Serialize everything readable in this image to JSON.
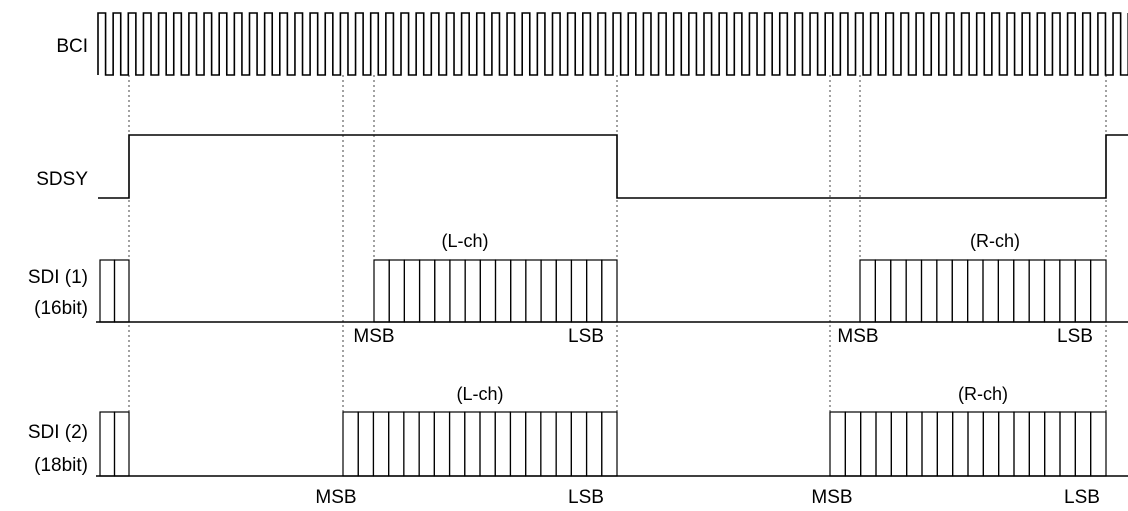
{
  "signals": {
    "bci": "BCI",
    "sdsy": "SDSY",
    "sdi1": "SDI (1)",
    "sdi1_width": "(16bit)",
    "sdi2": "SDI (2)",
    "sdi2_width": "(18bit)"
  },
  "channels": {
    "left": "(L-ch)",
    "right": "(R-ch)"
  },
  "bits": {
    "msb": "MSB",
    "lsb": "LSB"
  },
  "word_lengths": {
    "sdi1": 16,
    "sdi2": 18
  }
}
